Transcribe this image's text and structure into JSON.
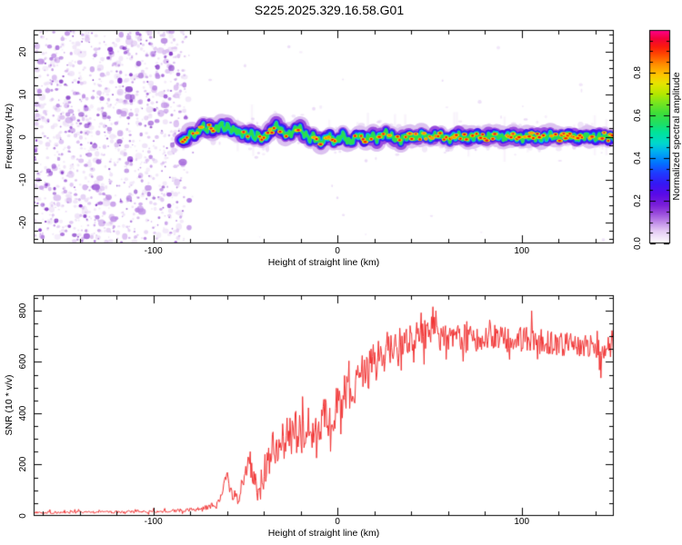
{
  "title": "S225.2025.329.16.58.G01",
  "seed": 20251107,
  "colors": {
    "background": "#ffffff",
    "axis": "#000000",
    "snr_line": "#f13333"
  },
  "chart_data": [
    {
      "type": "heatmap",
      "title": "S225.2025.329.16.58.G01",
      "xlabel": "Height of straight line (km)",
      "ylabel": "Frequency (Hz)",
      "xlim": [
        -165,
        150
      ],
      "ylim": [
        -25,
        25
      ],
      "xticks_major": [
        -100,
        0,
        100
      ],
      "xticks_major_labels": [
        "-100",
        "0",
        "100"
      ],
      "xtick_minor_step": 20,
      "yticks_major": [
        -20,
        -10,
        0,
        10,
        20
      ],
      "yticks_major_labels": [
        "-20",
        "-10",
        "0",
        "10",
        "20"
      ],
      "ytick_minor_step": 2,
      "grid": false,
      "colorbar": {
        "label": "Normalized spectral amplitude",
        "ticks": [
          0.0,
          0.2,
          0.4,
          0.6,
          0.8
        ],
        "tick_labels": [
          "0.0",
          "0.2",
          "0.4",
          "0.6",
          "0.8"
        ],
        "range": [
          0,
          1
        ],
        "gradient_stops": [
          [
            0.0,
            "#ffffff"
          ],
          [
            0.02,
            "#f6edfb"
          ],
          [
            0.06,
            "#e3c8f4"
          ],
          [
            0.1,
            "#bf8ae8"
          ],
          [
            0.14,
            "#9a4cdd"
          ],
          [
            0.18,
            "#7a1fd8"
          ],
          [
            0.23,
            "#5a0ae8"
          ],
          [
            0.28,
            "#3518f5"
          ],
          [
            0.33,
            "#1f3bff"
          ],
          [
            0.38,
            "#0077ff"
          ],
          [
            0.43,
            "#00b0f0"
          ],
          [
            0.47,
            "#00d8cc"
          ],
          [
            0.52,
            "#00e49a"
          ],
          [
            0.56,
            "#1ee065"
          ],
          [
            0.61,
            "#3ede3a"
          ],
          [
            0.66,
            "#7ae61e"
          ],
          [
            0.7,
            "#b4e800"
          ],
          [
            0.75,
            "#e8e400"
          ],
          [
            0.79,
            "#ffc400"
          ],
          [
            0.84,
            "#ff8c00"
          ],
          [
            0.88,
            "#ff5000"
          ],
          [
            0.92,
            "#fb1c0c"
          ],
          [
            0.96,
            "#f2003c"
          ],
          [
            1.0,
            "#ff0090"
          ]
        ]
      },
      "noise_region": {
        "x_range": [
          -165,
          -83
        ],
        "blob_count": 1300,
        "palette": [
          "#ede0f7",
          "#d9bcf0",
          "#bb8ae4",
          "#9c5ad6",
          "#7c2cc4"
        ],
        "palette_weights": [
          0.4,
          0.25,
          0.17,
          0.11,
          0.07
        ]
      },
      "sparse_speckles": {
        "count": 85,
        "color": "#d9bcf0"
      },
      "signal_trace": {
        "x_range": [
          -85,
          150
        ],
        "centerline": [
          [
            -85,
            -0.4
          ],
          [
            -83,
            -1.2
          ],
          [
            -81,
            0.3
          ],
          [
            -79,
            1.0
          ],
          [
            -77,
            0.3
          ],
          [
            -75,
            1.6
          ],
          [
            -73,
            2.5
          ],
          [
            -71,
            1.5
          ],
          [
            -69,
            2.3
          ],
          [
            -67,
            1.5
          ],
          [
            -65,
            2.2
          ],
          [
            -63,
            2.8
          ],
          [
            -61,
            1.8
          ],
          [
            -59,
            2.3
          ],
          [
            -57,
            1.3
          ],
          [
            -55,
            1.7
          ],
          [
            -53,
            0.7
          ],
          [
            -51,
            1.1
          ],
          [
            -49,
            0.3
          ],
          [
            -47,
            0.9
          ],
          [
            -45,
            -0.3
          ],
          [
            -43,
            0.5
          ],
          [
            -41,
            -0.7
          ],
          [
            -39,
            0.1
          ],
          [
            -37,
            1.0
          ],
          [
            -35,
            2.0
          ],
          [
            -33,
            2.7
          ],
          [
            -31,
            1.7
          ],
          [
            -29,
            0.8
          ],
          [
            -27,
            0.3
          ],
          [
            -25,
            0.9
          ],
          [
            -23,
            1.6
          ],
          [
            -21,
            2.2
          ],
          [
            -19,
            1.1
          ],
          [
            -17,
            0.3
          ],
          [
            -15,
            -0.5
          ],
          [
            -13,
            0.2
          ],
          [
            -11,
            -0.9
          ],
          [
            -9,
            -1.4
          ],
          [
            -7,
            -0.7
          ],
          [
            -5,
            0.3
          ],
          [
            -3,
            -0.5
          ],
          [
            -1,
            -1.2
          ],
          [
            1,
            -0.3
          ],
          [
            3,
            0.5
          ],
          [
            5,
            -0.7
          ],
          [
            7,
            -1.4
          ],
          [
            9,
            -0.5
          ],
          [
            11,
            0.5
          ],
          [
            13,
            -0.2
          ],
          [
            15,
            -0.9
          ],
          [
            17,
            -0.3
          ],
          [
            19,
            0.3
          ],
          [
            21,
            -0.5
          ],
          [
            23,
            0.1
          ],
          [
            26,
            0.8
          ],
          [
            30,
            -0.2
          ],
          [
            34,
            -0.8
          ],
          [
            38,
            0.4
          ],
          [
            42,
            -0.4
          ],
          [
            46,
            0.6
          ],
          [
            50,
            -0.3
          ],
          [
            55,
            0.5
          ],
          [
            60,
            -0.5
          ],
          [
            65,
            0.3
          ],
          [
            70,
            -0.4
          ],
          [
            75,
            0.4
          ],
          [
            80,
            -0.3
          ],
          [
            85,
            0.5
          ],
          [
            90,
            -0.2
          ],
          [
            95,
            0.3
          ],
          [
            100,
            -0.4
          ],
          [
            105,
            0.2
          ],
          [
            110,
            -0.3
          ],
          [
            115,
            0.3
          ],
          [
            120,
            -0.2
          ],
          [
            125,
            0.4
          ],
          [
            130,
            -0.3
          ],
          [
            135,
            0.2
          ],
          [
            140,
            -0.3
          ],
          [
            145,
            0.1
          ],
          [
            150,
            -0.2
          ]
        ],
        "jitter_hz": 0.6,
        "layers": [
          [
            "#dcc2f0",
            15.0
          ],
          [
            "#9a4cdd",
            10.5
          ],
          [
            "#4812ee",
            7.5
          ],
          [
            "#2337fa",
            5.5
          ],
          [
            "#00c2ee",
            3.8
          ],
          [
            "#2ade4e",
            2.6
          ]
        ],
        "hotspot_colors": [
          "#e8e400",
          "#ff9800",
          "#f31606",
          "#e8004c"
        ],
        "hotspot_prob": {
          "left": 0.25,
          "mid": 0.42,
          "right": 0.52
        }
      }
    },
    {
      "type": "line",
      "xlabel": "Height of straight line (km)",
      "ylabel": "SNR (10 * v/v)",
      "xlim": [
        -165,
        150
      ],
      "ylim": [
        0,
        860
      ],
      "xticks_major": [
        -100,
        0,
        100
      ],
      "xticks_major_labels": [
        "-100",
        "0",
        "100"
      ],
      "xtick_minor_step": 20,
      "yticks_major": [
        0,
        200,
        400,
        600,
        800
      ],
      "yticks_major_labels": [
        "0",
        "200",
        "400",
        "600",
        "800"
      ],
      "ytick_minor_step": 50,
      "grid": false,
      "line_color": "#f13333",
      "series": [
        {
          "name": "SNR",
          "sample_step_km": 0.4,
          "mean_points": [
            [
              -165,
              14
            ],
            [
              -150,
              14
            ],
            [
              -135,
              15
            ],
            [
              -120,
              15
            ],
            [
              -105,
              17
            ],
            [
              -95,
              18
            ],
            [
              -88,
              20
            ],
            [
              -80,
              24
            ],
            [
              -74,
              28
            ],
            [
              -70,
              36
            ],
            [
              -66,
              48
            ],
            [
              -63,
              80
            ],
            [
              -61,
              140
            ],
            [
              -60,
              160
            ],
            [
              -59,
              120
            ],
            [
              -57,
              70
            ],
            [
              -55,
              62
            ],
            [
              -53,
              95
            ],
            [
              -51,
              140
            ],
            [
              -49,
              200
            ],
            [
              -48,
              235
            ],
            [
              -47,
              200
            ],
            [
              -45,
              120
            ],
            [
              -43,
              90
            ],
            [
              -41,
              140
            ],
            [
              -39,
              190
            ],
            [
              -37,
              230
            ],
            [
              -35,
              260
            ],
            [
              -33,
              280
            ],
            [
              -31,
              270
            ],
            [
              -29,
              295
            ],
            [
              -27,
              310
            ],
            [
              -25,
              320
            ],
            [
              -23,
              330
            ],
            [
              -21,
              315
            ],
            [
              -19,
              330
            ],
            [
              -17,
              340
            ],
            [
              -15,
              345
            ],
            [
              -13,
              350
            ],
            [
              -11,
              370
            ],
            [
              -9,
              380
            ],
            [
              -7,
              385
            ],
            [
              -5,
              390
            ],
            [
              -3,
              400
            ],
            [
              -1,
              415
            ],
            [
              1,
              425
            ],
            [
              3,
              445
            ],
            [
              5,
              465
            ],
            [
              7,
              480
            ],
            [
              9,
              505
            ],
            [
              11,
              520
            ],
            [
              13,
              540
            ],
            [
              15,
              555
            ],
            [
              17,
              570
            ],
            [
              19,
              590
            ],
            [
              21,
              600
            ],
            [
              23,
              615
            ],
            [
              25,
              635
            ],
            [
              27,
              650
            ],
            [
              29,
              665
            ],
            [
              31,
              672
            ],
            [
              33,
              680
            ],
            [
              35,
              688
            ],
            [
              37,
              692
            ],
            [
              40,
              700
            ],
            [
              45,
              708
            ],
            [
              50,
              705
            ],
            [
              55,
              700
            ],
            [
              60,
              702
            ],
            [
              65,
              705
            ],
            [
              70,
              696
            ],
            [
              75,
              690
            ],
            [
              80,
              696
            ],
            [
              85,
              700
            ],
            [
              90,
              690
            ],
            [
              95,
              685
            ],
            [
              100,
              690
            ],
            [
              105,
              688
            ],
            [
              110,
              682
            ],
            [
              115,
              678
            ],
            [
              120,
              672
            ],
            [
              125,
              668
            ],
            [
              130,
              665
            ],
            [
              135,
              662
            ],
            [
              140,
              660
            ],
            [
              145,
              658
            ],
            [
              150,
              655
            ]
          ],
          "noise_amp_points": [
            [
              -165,
              9
            ],
            [
              -140,
              9
            ],
            [
              -120,
              9
            ],
            [
              -100,
              10
            ],
            [
              -90,
              11
            ],
            [
              -80,
              13
            ],
            [
              -72,
              16
            ],
            [
              -65,
              25
            ],
            [
              -60,
              35
            ],
            [
              -56,
              40
            ],
            [
              -52,
              70
            ],
            [
              -48,
              110
            ],
            [
              -45,
              110
            ],
            [
              -42,
              100
            ],
            [
              -38,
              115
            ],
            [
              -34,
              130
            ],
            [
              -30,
              140
            ],
            [
              -26,
              150
            ],
            [
              -22,
              160
            ],
            [
              -18,
              160
            ],
            [
              -14,
              150
            ],
            [
              -10,
              150
            ],
            [
              -6,
              150
            ],
            [
              -2,
              155
            ],
            [
              2,
              160
            ],
            [
              6,
              165
            ],
            [
              10,
              160
            ],
            [
              15,
              150
            ],
            [
              20,
              140
            ],
            [
              25,
              130
            ],
            [
              30,
              120
            ],
            [
              35,
              115
            ],
            [
              40,
              110
            ],
            [
              50,
              105
            ],
            [
              60,
              100
            ],
            [
              70,
              95
            ],
            [
              80,
              95
            ],
            [
              90,
              90
            ],
            [
              100,
              90
            ],
            [
              110,
              88
            ],
            [
              120,
              85
            ],
            [
              130,
              85
            ],
            [
              140,
              82
            ],
            [
              150,
              80
            ]
          ]
        }
      ]
    }
  ]
}
